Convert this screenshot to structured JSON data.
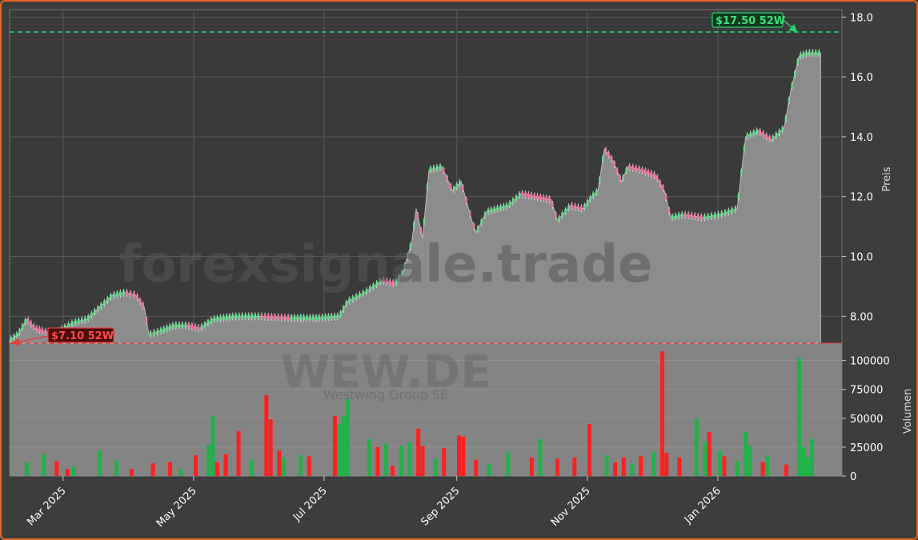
{
  "watermark": {
    "site": "forexsignale.trade",
    "ticker": "WEW.DE",
    "company": "Westwing Group SE"
  },
  "colors": {
    "up": "#22b04a",
    "down": "#ff2020",
    "area": "#8c8c8c",
    "high_line": "#2ecc71",
    "low_line": "#e04040"
  },
  "chart_data": [
    {
      "type": "line",
      "ylabel": "Preis",
      "ylim": [
        7.1,
        18.25
      ],
      "xlim": [
        "2025-02-04",
        "2026-02-28"
      ],
      "y_ticks": [
        "8.00",
        "10.0",
        "12.0",
        "14.0",
        "16.0",
        "18.0"
      ],
      "x_tick_labels": [
        {
          "date": "2025-03-01",
          "label": "Mar 2025"
        },
        {
          "date": "2025-05-01",
          "label": "May 2025"
        },
        {
          "date": "2025-07-01",
          "label": "Jul 2025"
        },
        {
          "date": "2025-09-01",
          "label": "Sep 2025"
        },
        {
          "date": "2025-11-01",
          "label": "Nov 2025"
        },
        {
          "date": "2026-01-01",
          "label": "Jan 2026"
        }
      ],
      "grid": true,
      "series": [
        {
          "values": [
            [
              "2025-02-04",
              7.2
            ],
            [
              "2025-02-08",
              7.4
            ],
            [
              "2025-02-12",
              7.9
            ],
            [
              "2025-02-16",
              7.6
            ],
            [
              "2025-02-20",
              7.5
            ],
            [
              "2025-02-25",
              7.4
            ],
            [
              "2025-03-01",
              7.6
            ],
            [
              "2025-03-06",
              7.8
            ],
            [
              "2025-03-12",
              7.9
            ],
            [
              "2025-03-18",
              8.3
            ],
            [
              "2025-03-24",
              8.7
            ],
            [
              "2025-03-30",
              8.8
            ],
            [
              "2025-04-04",
              8.7
            ],
            [
              "2025-04-08",
              8.3
            ],
            [
              "2025-04-10",
              7.4
            ],
            [
              "2025-04-15",
              7.5
            ],
            [
              "2025-04-22",
              7.7
            ],
            [
              "2025-04-28",
              7.7
            ],
            [
              "2025-05-04",
              7.6
            ],
            [
              "2025-05-10",
              7.9
            ],
            [
              "2025-05-20",
              8.0
            ],
            [
              "2025-06-01",
              8.0
            ],
            [
              "2025-06-15",
              7.95
            ],
            [
              "2025-06-28",
              7.95
            ],
            [
              "2025-07-08",
              8.0
            ],
            [
              "2025-07-12",
              8.5
            ],
            [
              "2025-07-20",
              8.8
            ],
            [
              "2025-07-28",
              9.2
            ],
            [
              "2025-08-03",
              9.1
            ],
            [
              "2025-08-07",
              9.5
            ],
            [
              "2025-08-11",
              10.5
            ],
            [
              "2025-08-13",
              11.6
            ],
            [
              "2025-08-16",
              10.6
            ],
            [
              "2025-08-19",
              12.9
            ],
            [
              "2025-08-25",
              13.0
            ],
            [
              "2025-08-30",
              12.2
            ],
            [
              "2025-09-03",
              12.5
            ],
            [
              "2025-09-08",
              11.2
            ],
            [
              "2025-09-10",
              10.8
            ],
            [
              "2025-09-15",
              11.5
            ],
            [
              "2025-09-25",
              11.7
            ],
            [
              "2025-10-01",
              12.1
            ],
            [
              "2025-10-08",
              12.0
            ],
            [
              "2025-10-15",
              11.9
            ],
            [
              "2025-10-18",
              11.2
            ],
            [
              "2025-10-24",
              11.7
            ],
            [
              "2025-10-30",
              11.6
            ],
            [
              "2025-11-03",
              12.0
            ],
            [
              "2025-11-06",
              12.2
            ],
            [
              "2025-11-09",
              13.6
            ],
            [
              "2025-11-13",
              13.2
            ],
            [
              "2025-11-17",
              12.5
            ],
            [
              "2025-11-20",
              13.0
            ],
            [
              "2025-11-26",
              12.9
            ],
            [
              "2025-12-03",
              12.7
            ],
            [
              "2025-12-07",
              12.2
            ],
            [
              "2025-12-10",
              11.3
            ],
            [
              "2025-12-16",
              11.4
            ],
            [
              "2025-12-25",
              11.3
            ],
            [
              "2026-01-02",
              11.4
            ],
            [
              "2026-01-10",
              11.6
            ],
            [
              "2026-01-14",
              14.0
            ],
            [
              "2026-01-20",
              14.2
            ],
            [
              "2026-01-26",
              13.9
            ],
            [
              "2026-02-01",
              14.3
            ],
            [
              "2026-02-04",
              15.5
            ],
            [
              "2026-02-08",
              16.7
            ],
            [
              "2026-02-12",
              16.8
            ],
            [
              "2026-02-18",
              16.8
            ]
          ]
        }
      ],
      "annotations": [
        {
          "label": "$17.50 52W",
          "value": 17.5,
          "date": "2026-02-07",
          "kind": "high"
        },
        {
          "label": "$7.10 52W",
          "value": 7.1,
          "date": "2025-02-05",
          "kind": "low"
        }
      ]
    },
    {
      "type": "bar",
      "ylabel": "Volumen",
      "ylim": [
        0,
        115000
      ],
      "y_ticks": [
        "0",
        "25000",
        "50000",
        "75000",
        "100000"
      ],
      "series": [
        {
          "name": "up",
          "values": [
            [
              "2025-02-12",
              12000
            ],
            [
              "2025-02-20",
              19000
            ],
            [
              "2025-03-06",
              8000
            ],
            [
              "2025-03-18",
              22000
            ],
            [
              "2025-03-26",
              14000
            ],
            [
              "2025-04-25",
              6000
            ],
            [
              "2025-05-08",
              27000
            ],
            [
              "2025-05-10",
              52000
            ],
            [
              "2025-05-28",
              14000
            ],
            [
              "2025-06-12",
              16000
            ],
            [
              "2025-06-20",
              18000
            ],
            [
              "2025-07-08",
              45000
            ],
            [
              "2025-07-10",
              52000
            ],
            [
              "2025-07-12",
              67000
            ],
            [
              "2025-07-22",
              32000
            ],
            [
              "2025-07-30",
              28000
            ],
            [
              "2025-08-06",
              26000
            ],
            [
              "2025-08-10",
              29000
            ],
            [
              "2025-08-22",
              15000
            ],
            [
              "2025-09-16",
              10000
            ],
            [
              "2025-09-25",
              21000
            ],
            [
              "2025-10-10",
              32000
            ],
            [
              "2025-11-10",
              18000
            ],
            [
              "2025-11-22",
              10000
            ],
            [
              "2025-12-02",
              21000
            ],
            [
              "2025-12-22",
              50000
            ],
            [
              "2025-12-26",
              30000
            ],
            [
              "2026-01-02",
              22000
            ],
            [
              "2026-01-10",
              13000
            ],
            [
              "2026-01-14",
              38000
            ],
            [
              "2026-01-16",
              26000
            ],
            [
              "2026-01-24",
              18000
            ],
            [
              "2026-02-08",
              102000
            ],
            [
              "2026-02-10",
              25000
            ],
            [
              "2026-02-12",
              16000
            ],
            [
              "2026-02-14",
              32000
            ]
          ]
        },
        {
          "name": "down",
          "values": [
            [
              "2025-02-26",
              13000
            ],
            [
              "2025-03-03",
              6000
            ],
            [
              "2025-04-02",
              6000
            ],
            [
              "2025-04-12",
              11000
            ],
            [
              "2025-04-20",
              12000
            ],
            [
              "2025-05-02",
              18000
            ],
            [
              "2025-05-12",
              12000
            ],
            [
              "2025-05-16",
              19000
            ],
            [
              "2025-05-22",
              39000
            ],
            [
              "2025-06-04",
              70000
            ],
            [
              "2025-06-06",
              49000
            ],
            [
              "2025-06-10",
              22000
            ],
            [
              "2025-06-24",
              17000
            ],
            [
              "2025-07-06",
              52000
            ],
            [
              "2025-07-26",
              25000
            ],
            [
              "2025-08-02",
              9000
            ],
            [
              "2025-08-14",
              41000
            ],
            [
              "2025-08-16",
              26000
            ],
            [
              "2025-08-26",
              24000
            ],
            [
              "2025-09-02",
              35000
            ],
            [
              "2025-09-04",
              34000
            ],
            [
              "2025-09-10",
              14000
            ],
            [
              "2025-10-06",
              16000
            ],
            [
              "2025-10-18",
              15000
            ],
            [
              "2025-10-26",
              16000
            ],
            [
              "2025-11-02",
              45000
            ],
            [
              "2025-11-14",
              12000
            ],
            [
              "2025-11-18",
              16000
            ],
            [
              "2025-11-26",
              17000
            ],
            [
              "2025-12-06",
              108000
            ],
            [
              "2025-12-08",
              20000
            ],
            [
              "2025-12-14",
              16000
            ],
            [
              "2025-12-28",
              38000
            ],
            [
              "2026-01-04",
              17000
            ],
            [
              "2026-01-22",
              12000
            ],
            [
              "2026-02-02",
              10000
            ]
          ]
        }
      ]
    }
  ]
}
